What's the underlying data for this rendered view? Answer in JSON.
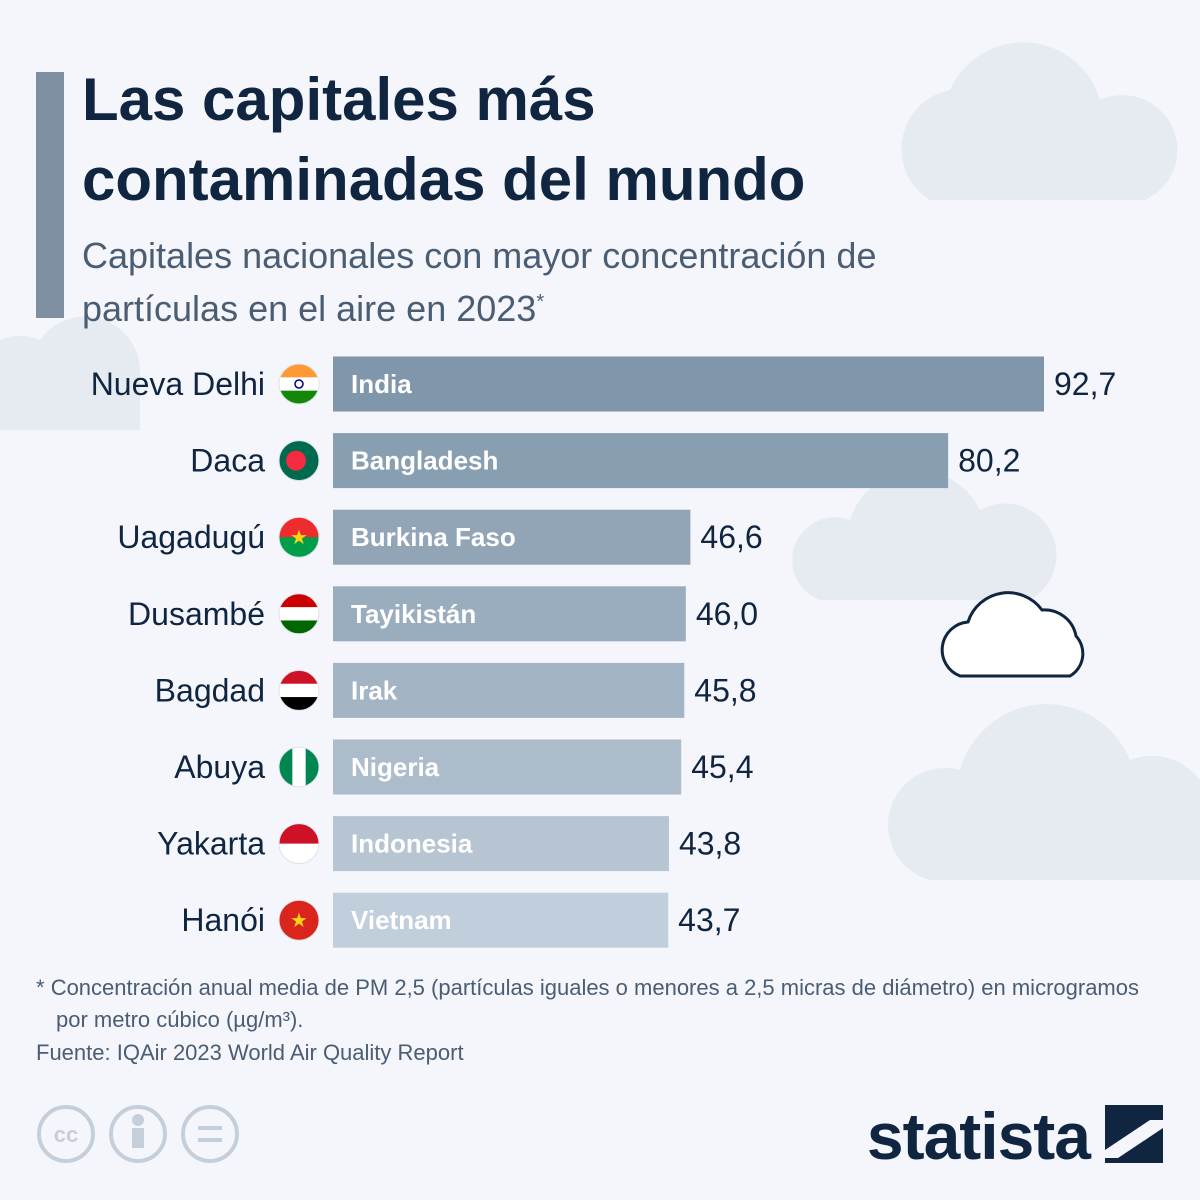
{
  "chart_data": {
    "type": "bar",
    "orientation": "horizontal",
    "title": "Las capitales más contaminadas del mundo",
    "subtitle": "Capitales nacionales con mayor concentración de partículas en el aire en 2023",
    "subtitle_marker": "*",
    "categories": [
      "Nueva Delhi",
      "Daca",
      "Uagadugú",
      "Dusambé",
      "Bagdad",
      "Abuya",
      "Yakarta",
      "Hanói"
    ],
    "bar_labels": [
      "India",
      "Bangladesh",
      "Burkina Faso",
      "Tayikistán",
      "Irak",
      "Nigeria",
      "Indonesia",
      "Vietnam"
    ],
    "values": [
      92.7,
      80.2,
      46.6,
      46.0,
      45.8,
      45.4,
      43.8,
      43.7
    ],
    "value_labels": [
      "92,7",
      "80,2",
      "46,6",
      "46,0",
      "45,8",
      "45,4",
      "43,8",
      "43,7"
    ],
    "colors": [
      "#8097ab",
      "#889eb1",
      "#91a5b7",
      "#9aadbe",
      "#a3b4c4",
      "#acbccb",
      "#b7c5d3",
      "#c1cedb"
    ],
    "footnote_marker": "*",
    "footnote": "Concentración anual media de PM 2,5 (partículas iguales o menores a 2,5 micras de diámetro) en microgramos por metro cúbico (µg/m³).",
    "source": "Fuente: IQAir 2023 World Air Quality Report",
    "logo": "statista"
  }
}
